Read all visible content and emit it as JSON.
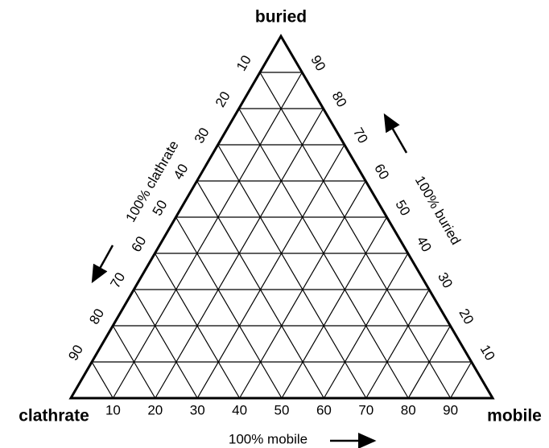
{
  "vertices": {
    "top": "buried",
    "left": "clathrate",
    "right": "mobile"
  },
  "axes": [
    {
      "label": "100% clathrate",
      "ticks": [
        10,
        20,
        30,
        40,
        50,
        60,
        70,
        80,
        90
      ]
    },
    {
      "label": "100% buried",
      "ticks": [
        10,
        20,
        30,
        40,
        50,
        60,
        70,
        80,
        90
      ]
    },
    {
      "label": "100% mobile",
      "ticks": [
        10,
        20,
        30,
        40,
        50,
        60,
        70,
        80,
        90
      ]
    }
  ]
}
